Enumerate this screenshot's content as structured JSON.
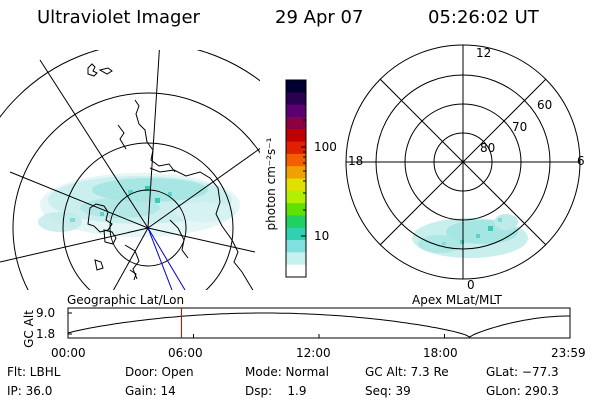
{
  "header": {
    "instrument": "Ultraviolet Imager",
    "date": "29 Apr 07",
    "time": "05:26:02 UT"
  },
  "colorbar": {
    "label": "photon cm⁻²s⁻¹",
    "ticks": [
      "100",
      "10"
    ],
    "colors": [
      "#000033",
      "#2a0050",
      "#5a0070",
      "#8a0040",
      "#c00000",
      "#e02000",
      "#f06000",
      "#f0a000",
      "#e0e000",
      "#b0f000",
      "#60e000",
      "#20d060",
      "#30d0b0",
      "#80e0e0",
      "#c8f0f0",
      "#ffffff"
    ]
  },
  "left_panel": {
    "caption": "Geographic Lat/Lon"
  },
  "right_panel": {
    "caption": "Apex MLat/MLT",
    "mlt_labels": {
      "top": "12",
      "left": "18",
      "right": "6",
      "bottom": "0"
    },
    "lat_labels": [
      "60",
      "70",
      "80"
    ]
  },
  "timeline": {
    "ylabel": "GC Alt",
    "yticks": [
      "9.0",
      "1.8"
    ],
    "xticks": [
      "00:00",
      "06:00",
      "12:00",
      "18:00",
      "23:59"
    ],
    "marker_fraction": 0.226
  },
  "status": {
    "flt": "Flt: LBHL",
    "ip": "IP: 36.0",
    "door": "Door: Open",
    "gain": "Gain: 14",
    "mode": "Mode: Normal",
    "dsp": "Dsp:    1.9",
    "gcalt": "GC Alt: 7.3 Re",
    "seq": "Seq: 39",
    "glat": "GLat: −77.3",
    "glon": "GLon: 290.3"
  },
  "colors": {
    "marker": "#cc0000",
    "aurora_light": "#c8eeee",
    "aurora_mid": "#7fdcd8",
    "aurora_dark": "#3cc8b8",
    "track": "#0000cc"
  }
}
